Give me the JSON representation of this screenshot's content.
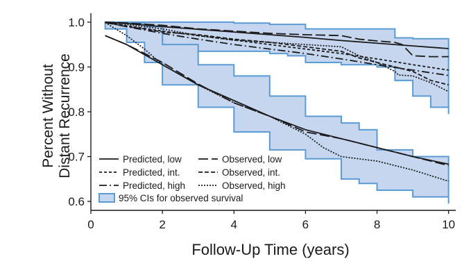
{
  "chart_data": {
    "type": "line",
    "title": "",
    "xlabel": "Follow-Up Time (years)",
    "ylabel_line1": "Percent Without",
    "ylabel_line2": "Distant Recurrence",
    "xlim": [
      0,
      10.2
    ],
    "ylim": [
      0.58,
      1.02
    ],
    "x_ticks": [
      0,
      2,
      4,
      6,
      8,
      10
    ],
    "y_ticks": [
      0.6,
      0.7,
      0.8,
      0.9,
      1.0
    ],
    "x_tick_labels": [
      "0",
      "2",
      "4",
      "6",
      "8",
      "10"
    ],
    "y_tick_labels": [
      "0.6",
      "0.7",
      "0.8",
      "0.9",
      "1.0"
    ],
    "grid": false,
    "legend_position": "bottom-left",
    "colors": {
      "ci_fill": "#c6d6ee",
      "ci_edge": "#5b9bd5",
      "line": "#1a1a1a"
    },
    "series": [
      {
        "name": "Predicted, low",
        "style": "solid",
        "x": [
          0.4,
          1,
          2,
          3,
          4,
          5,
          6,
          7,
          8,
          9,
          10
        ],
        "y": [
          1.0,
          0.997,
          0.99,
          0.984,
          0.978,
          0.972,
          0.966,
          0.959,
          0.953,
          0.947,
          0.941
        ]
      },
      {
        "name": "Predicted, int.",
        "style": "short-dash",
        "x": [
          0.4,
          1,
          2,
          3,
          4,
          5,
          6,
          7,
          8,
          9,
          10
        ],
        "y": [
          1.0,
          0.992,
          0.98,
          0.97,
          0.96,
          0.95,
          0.94,
          0.93,
          0.918,
          0.905,
          0.893
        ]
      },
      {
        "name": "Predicted, high",
        "style": "dash-dot",
        "x": [
          0.4,
          1,
          2,
          3,
          4,
          5,
          6,
          7,
          8,
          9,
          10
        ],
        "y": [
          0.999,
          0.99,
          0.975,
          0.962,
          0.95,
          0.94,
          0.93,
          0.918,
          0.905,
          0.893,
          0.881
        ]
      },
      {
        "name": "Observed, low",
        "style": "long-dash",
        "x": [
          0.4,
          1,
          2,
          3,
          4,
          5,
          6,
          7,
          7.5,
          8,
          8.5,
          8.7,
          9,
          9.5,
          10
        ],
        "y": [
          1.0,
          0.998,
          0.993,
          0.985,
          0.98,
          0.975,
          0.972,
          0.97,
          0.962,
          0.958,
          0.955,
          0.95,
          0.925,
          0.923,
          0.923
        ]
      },
      {
        "name": "Observed, int.",
        "style": "medium-dash",
        "x": [
          0.4,
          1,
          1.5,
          2,
          3,
          4,
          5,
          6,
          7,
          7.5,
          8,
          8.5,
          9,
          9.5,
          10
        ],
        "y": [
          1.0,
          0.99,
          0.985,
          0.978,
          0.972,
          0.962,
          0.955,
          0.945,
          0.935,
          0.92,
          0.91,
          0.9,
          0.89,
          0.87,
          0.86
        ]
      },
      {
        "name": "Observed, high",
        "style": "dotted",
        "x": [
          0.4,
          1,
          2,
          3,
          4,
          5,
          6,
          7,
          7.5,
          8,
          8.5,
          8.6,
          9,
          9.5,
          10
        ],
        "y": [
          1.0,
          0.995,
          0.985,
          0.97,
          0.96,
          0.955,
          0.95,
          0.945,
          0.925,
          0.91,
          0.89,
          0.882,
          0.88,
          0.865,
          0.845
        ]
      },
      {
        "name": "Predicted, low (high-risk group)",
        "style": "solid",
        "legend": false,
        "x": [
          0.4,
          1,
          2,
          3,
          4,
          5,
          6,
          7,
          8,
          9,
          10
        ],
        "y": [
          0.97,
          0.95,
          0.905,
          0.86,
          0.825,
          0.79,
          0.76,
          0.74,
          0.72,
          0.7,
          0.683
        ]
      },
      {
        "name": "Observed (high-risk group)",
        "style": "long-dash",
        "legend": false,
        "x": [
          0.4,
          1,
          1.5,
          2,
          3,
          4,
          5,
          6,
          7,
          8,
          9,
          10
        ],
        "y": [
          0.97,
          0.95,
          0.93,
          0.91,
          0.862,
          0.82,
          0.79,
          0.755,
          0.74,
          0.72,
          0.7,
          0.68
        ]
      },
      {
        "name": "Observed, high (high-risk group)",
        "style": "dotted",
        "legend": false,
        "x": [
          0.4,
          1,
          1.5,
          2,
          3,
          4,
          5,
          6,
          6.5,
          7,
          8,
          9,
          10
        ],
        "y": [
          0.999,
          0.97,
          0.94,
          0.905,
          0.86,
          0.82,
          0.79,
          0.75,
          0.72,
          0.7,
          0.69,
          0.67,
          0.645
        ]
      }
    ],
    "ci_bands": [
      {
        "name": "95% CIs for observed survival",
        "x": [
          0.4,
          1,
          2,
          3,
          4,
          5,
          5.5,
          6,
          7,
          8,
          8.5,
          9,
          9.5,
          10
        ],
        "upper": [
          1.0,
          1.0,
          1.0,
          1.0,
          0.998,
          0.995,
          0.995,
          0.985,
          0.985,
          0.985,
          0.965,
          0.963,
          0.963,
          0.963
        ],
        "lower": [
          1.0,
          0.975,
          0.935,
          0.935,
          0.935,
          0.93,
          0.925,
          0.91,
          0.905,
          0.9,
          0.87,
          0.835,
          0.81,
          0.795
        ]
      },
      {
        "name": "95% CIs for observed survival (high-risk group)",
        "legend": false,
        "x": [
          0.4,
          1,
          1.5,
          2,
          3,
          4,
          5,
          6,
          7,
          7.5,
          8,
          9,
          10
        ],
        "upper": [
          1.0,
          0.998,
          0.99,
          0.95,
          0.905,
          0.88,
          0.835,
          0.79,
          0.775,
          0.76,
          0.715,
          0.7,
          0.7
        ],
        "lower": [
          0.985,
          0.955,
          0.91,
          0.86,
          0.81,
          0.755,
          0.715,
          0.695,
          0.65,
          0.64,
          0.625,
          0.61,
          0.595
        ]
      }
    ]
  }
}
